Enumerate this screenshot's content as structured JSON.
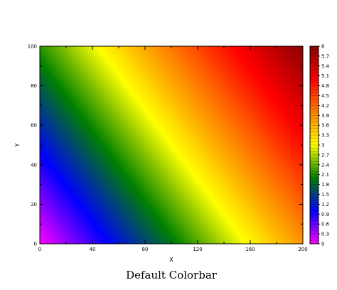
{
  "chart_data": {
    "type": "heatmap",
    "title": "Default Colorbar",
    "xlabel": "X",
    "ylabel": "Y",
    "xlim": [
      0,
      200
    ],
    "ylim": [
      0,
      100
    ],
    "x_ticks": [
      0,
      40,
      80,
      120,
      160,
      200
    ],
    "y_ticks": [
      0,
      20,
      40,
      60,
      80,
      100
    ],
    "x_tick_labels": [
      "0",
      "40",
      "80",
      "120",
      "160",
      "200"
    ],
    "y_tick_labels": [
      "0",
      "20",
      "40",
      "60",
      "80",
      "100"
    ],
    "z_min": 0,
    "z_max": 6,
    "field": "z increases linearly from 0 at (0,0) to 6 at (200,100)",
    "colorbar": {
      "placement": "right",
      "tick_values": [
        0,
        0.3,
        0.6,
        0.9,
        1.2,
        1.5,
        1.8,
        2.1,
        2.4,
        2.7,
        3,
        3.3,
        3.6,
        3.9,
        4.2,
        4.5,
        4.8,
        5.1,
        5.4,
        5.7,
        6
      ],
      "tick_labels": [
        "0",
        "0.3",
        "0.6",
        "0.9",
        "1.2",
        "1.5",
        "1.8",
        "2.1",
        "2.4",
        "2.7",
        "3",
        "3.3",
        "3.6",
        "3.9",
        "4.2",
        "4.5",
        "4.8",
        "5.1",
        "5.4",
        "5.7",
        "6"
      ],
      "colors": [
        "#ff00ff",
        "#0000ff",
        "#008000",
        "#ffff00",
        "#ff8000",
        "#ff0000",
        "#8b0000"
      ]
    }
  }
}
